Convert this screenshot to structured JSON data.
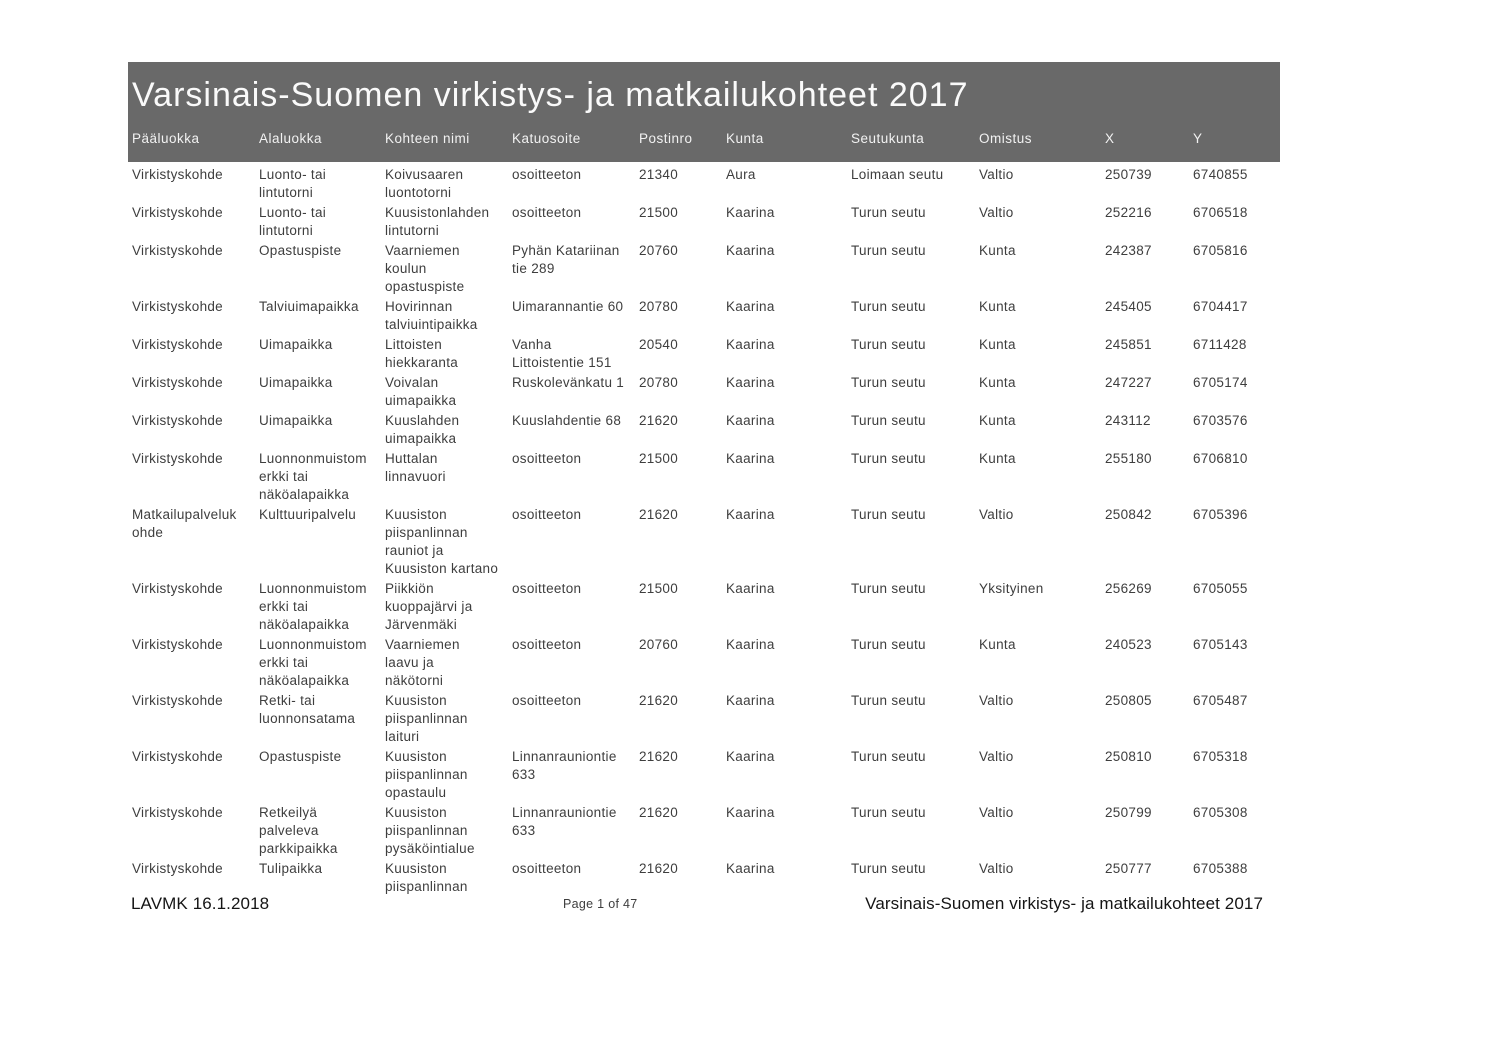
{
  "page": {
    "title": "Varsinais-Suomen virkistys- ja matkailukohteet 2017",
    "footer_left": "LAVMK 16.1.2018",
    "footer_center": "Page 1 of 47",
    "footer_right": "Varsinais-Suomen virkistys- ja matkailukohteet 2017"
  },
  "colors": {
    "header_bar": "#696969",
    "header_text": "#f2f2f2",
    "body_text": "#3e3e3e",
    "page_background": "#ffffff"
  },
  "table": {
    "columns": [
      "Pääluokka",
      "Alaluokka",
      "Kohteen nimi",
      "Katuosoite",
      "Postinro",
      "Kunta",
      "Seutukunta",
      "Omistus",
      "X",
      "Y"
    ],
    "rows": [
      [
        "Virkistyskohde",
        "Luonto- tai\nlintutorni",
        "Koivusaaren\nluontotorni",
        "osoitteeton",
        "21340",
        "Aura",
        "Loimaan seutu",
        "Valtio",
        "250739",
        "6740855"
      ],
      [
        "Virkistyskohde",
        "Luonto- tai\nlintutorni",
        "Kuusistonlahden\nlintutorni",
        "osoitteeton",
        "21500",
        "Kaarina",
        "Turun seutu",
        "Valtio",
        "252216",
        "6706518"
      ],
      [
        "Virkistyskohde",
        "Opastuspiste",
        "Vaarniemen\nkoulun\nopastuspiste",
        "Pyhän Katariinan\ntie 289",
        "20760",
        "Kaarina",
        "Turun seutu",
        "Kunta",
        "242387",
        "6705816"
      ],
      [
        "Virkistyskohde",
        "Talviuimapaikka",
        "Hovirinnan\ntalviuintipaikka",
        "Uimarannantie 60",
        "20780",
        "Kaarina",
        "Turun seutu",
        "Kunta",
        "245405",
        "6704417"
      ],
      [
        "Virkistyskohde",
        "Uimapaikka",
        "Littoisten\nhiekkaranta",
        "Vanha\nLittoistentie 151",
        "20540",
        "Kaarina",
        "Turun seutu",
        "Kunta",
        "245851",
        "6711428"
      ],
      [
        "Virkistyskohde",
        "Uimapaikka",
        "Voivalan\nuimapaikka",
        "Ruskolevänkatu 1",
        "20780",
        "Kaarina",
        "Turun seutu",
        "Kunta",
        "247227",
        "6705174"
      ],
      [
        "Virkistyskohde",
        "Uimapaikka",
        "Kuuslahden\nuimapaikka",
        "Kuuslahdentie 68",
        "21620",
        "Kaarina",
        "Turun seutu",
        "Kunta",
        "243112",
        "6703576"
      ],
      [
        "Virkistyskohde",
        "Luonnonmuistom\nerkki tai\nnäköalapaikka",
        "Huttalan\nlinnavuori",
        "osoitteeton",
        "21500",
        "Kaarina",
        "Turun seutu",
        "Kunta",
        "255180",
        "6706810"
      ],
      [
        "Matkailupalveluk\nohde",
        "Kulttuuripalvelu",
        "Kuusiston\npiispanlinnan\nrauniot ja\nKuusiston kartano",
        "osoitteeton",
        "21620",
        "Kaarina",
        "Turun seutu",
        "Valtio",
        "250842",
        "6705396"
      ],
      [
        "Virkistyskohde",
        "Luonnonmuistom\nerkki tai\nnäköalapaikka",
        "Piikkiön\nkuoppajärvi ja\nJärvenmäki",
        "osoitteeton",
        "21500",
        "Kaarina",
        "Turun seutu",
        "Yksityinen",
        "256269",
        "6705055"
      ],
      [
        "Virkistyskohde",
        "Luonnonmuistom\nerkki tai\nnäköalapaikka",
        "Vaarniemen\nlaavu ja\nnäkötorni",
        "osoitteeton",
        "20760",
        "Kaarina",
        "Turun seutu",
        "Kunta",
        "240523",
        "6705143"
      ],
      [
        "Virkistyskohde",
        "Retki- tai\nluonnonsatama",
        "Kuusiston\npiispanlinnan\nlaituri",
        "osoitteeton",
        "21620",
        "Kaarina",
        "Turun seutu",
        "Valtio",
        "250805",
        "6705487"
      ],
      [
        "Virkistyskohde",
        "Opastuspiste",
        "Kuusiston\npiispanlinnan\nopastaulu",
        "Linnanrauniontie\n633",
        "21620",
        "Kaarina",
        "Turun seutu",
        "Valtio",
        "250810",
        "6705318"
      ],
      [
        "Virkistyskohde",
        "Retkeilyä\npalveleva\nparkkipaikka",
        "Kuusiston\npiispanlinnan\npysäköintialue",
        "Linnanrauniontie\n633",
        "21620",
        "Kaarina",
        "Turun seutu",
        "Valtio",
        "250799",
        "6705308"
      ],
      [
        "Virkistyskohde",
        "Tulipaikka",
        "Kuusiston\npiispanlinnan",
        "osoitteeton",
        "21620",
        "Kaarina",
        "Turun seutu",
        "Valtio",
        "250777",
        "6705388"
      ]
    ]
  }
}
